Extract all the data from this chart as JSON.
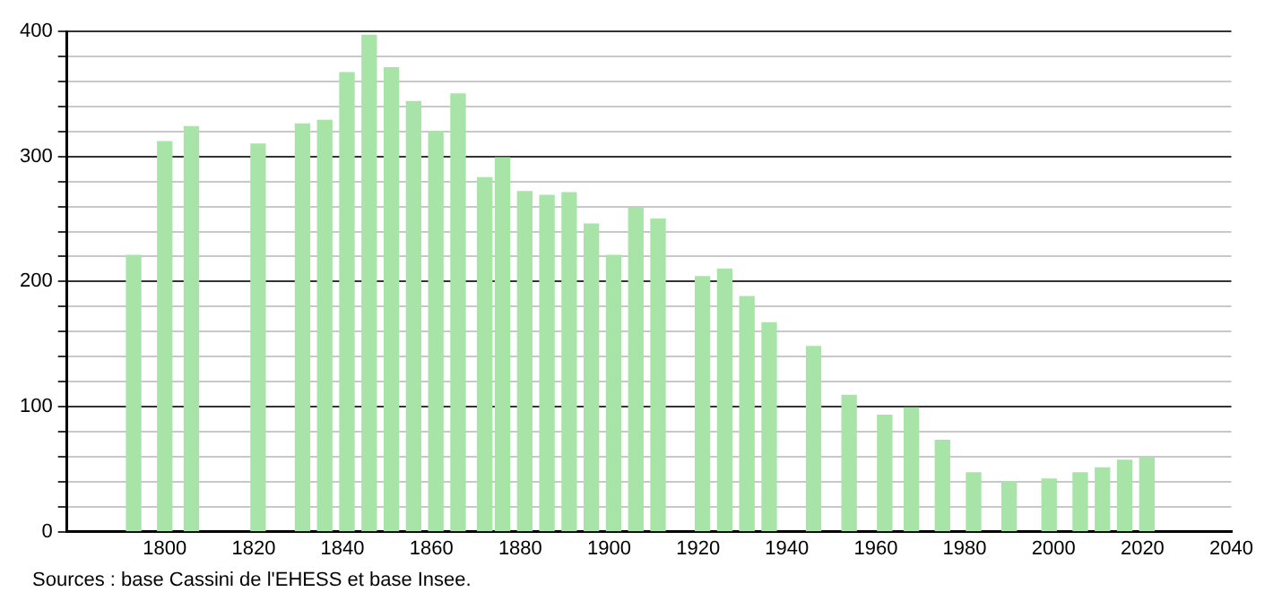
{
  "chart_data": {
    "type": "bar",
    "x": [
      1793,
      1800,
      1806,
      1821,
      1831,
      1836,
      1841,
      1846,
      1851,
      1856,
      1861,
      1866,
      1872,
      1876,
      1881,
      1886,
      1891,
      1896,
      1901,
      1906,
      1911,
      1921,
      1926,
      1931,
      1936,
      1946,
      1954,
      1962,
      1968,
      1975,
      1982,
      1990,
      1999,
      2006,
      2011,
      2016,
      2021
    ],
    "values": [
      221,
      312,
      324,
      310,
      326,
      329,
      367,
      397,
      371,
      344,
      320,
      350,
      283,
      299,
      272,
      269,
      271,
      246,
      221,
      259,
      250,
      204,
      210,
      188,
      167,
      148,
      109,
      93,
      99,
      73,
      47,
      40,
      42,
      47,
      51,
      57,
      59
    ],
    "color": "#a8e4a8",
    "xlim": [
      1778,
      2040
    ],
    "xticks": [
      1800,
      1820,
      1840,
      1860,
      1880,
      1900,
      1920,
      1940,
      1960,
      1980,
      2000,
      2020,
      2040
    ],
    "ylim": [
      0,
      400
    ],
    "yticks": [
      0,
      {
        "value": 20,
        "label": null
      },
      {
        "value": 40,
        "label": null
      },
      {
        "value": 60,
        "label": null
      },
      {
        "value": 80,
        "label": null
      },
      100,
      {
        "value": 120,
        "label": null
      },
      {
        "value": 140,
        "label": null
      },
      {
        "value": 160,
        "label": null
      },
      {
        "value": 180,
        "label": null
      },
      200,
      {
        "value": 220,
        "label": null
      },
      {
        "value": 240,
        "label": null
      },
      {
        "value": 260,
        "label": null
      },
      {
        "value": 280,
        "label": null
      },
      300,
      {
        "value": 320,
        "label": null
      },
      {
        "value": 340,
        "label": null
      },
      {
        "value": 360,
        "label": null
      },
      {
        "value": 380,
        "label": null
      },
      400
    ],
    "grid": "y",
    "legend": false,
    "annotations": [
      "Sources : base Cassini de l'EHESS et base Insee."
    ]
  }
}
